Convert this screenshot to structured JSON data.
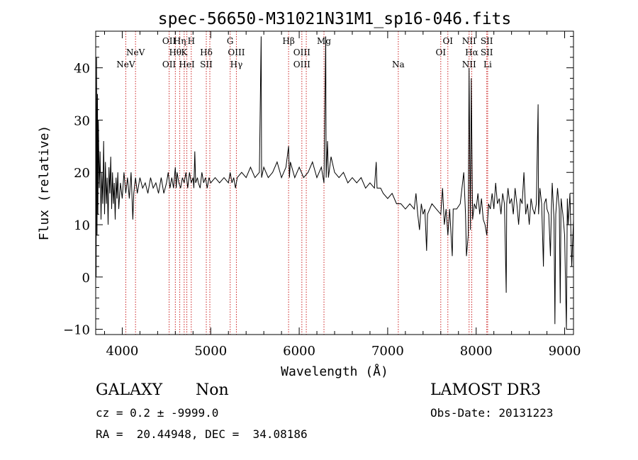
{
  "chart_data": {
    "type": "line",
    "title": "spec-56650-M31021N31M1_sp16-046.fits",
    "xlabel": "Wavelength (Å)",
    "ylabel": "Flux (relative)",
    "xlim": [
      3700,
      9100
    ],
    "ylim": [
      -11,
      47
    ],
    "x_ticks": [
      4000,
      5000,
      6000,
      7000,
      8000,
      9000
    ],
    "y_ticks": [
      -10,
      0,
      10,
      20,
      30,
      40
    ],
    "grid": false,
    "series": [
      {
        "name": "flux",
        "points": [
          [
            3700,
            10
          ],
          [
            3705,
            0
          ],
          [
            3710,
            42
          ],
          [
            3715,
            8
          ],
          [
            3720,
            35
          ],
          [
            3725,
            12
          ],
          [
            3730,
            30
          ],
          [
            3740,
            17
          ],
          [
            3750,
            24
          ],
          [
            3760,
            11
          ],
          [
            3770,
            20
          ],
          [
            3780,
            14
          ],
          [
            3790,
            26
          ],
          [
            3800,
            12
          ],
          [
            3810,
            22
          ],
          [
            3820,
            14
          ],
          [
            3830,
            19
          ],
          [
            3840,
            10
          ],
          [
            3850,
            21
          ],
          [
            3860,
            16
          ],
          [
            3870,
            23
          ],
          [
            3880,
            13
          ],
          [
            3890,
            20
          ],
          [
            3900,
            14
          ],
          [
            3910,
            18
          ],
          [
            3920,
            11
          ],
          [
            3930,
            19
          ],
          [
            3940,
            15
          ],
          [
            3950,
            20
          ],
          [
            3960,
            13
          ],
          [
            3980,
            18
          ],
          [
            4000,
            15
          ],
          [
            4020,
            20
          ],
          [
            4040,
            16
          ],
          [
            4060,
            19
          ],
          [
            4080,
            15
          ],
          [
            4100,
            20
          ],
          [
            4120,
            11
          ],
          [
            4130,
            16
          ],
          [
            4150,
            19
          ],
          [
            4170,
            16
          ],
          [
            4200,
            19
          ],
          [
            4230,
            17
          ],
          [
            4260,
            18
          ],
          [
            4290,
            16
          ],
          [
            4320,
            19
          ],
          [
            4350,
            17
          ],
          [
            4380,
            18
          ],
          [
            4410,
            16
          ],
          [
            4440,
            19
          ],
          [
            4470,
            16
          ],
          [
            4500,
            18
          ],
          [
            4520,
            20
          ],
          [
            4540,
            17
          ],
          [
            4560,
            19
          ],
          [
            4580,
            17
          ],
          [
            4600,
            21
          ],
          [
            4610,
            17
          ],
          [
            4620,
            20
          ],
          [
            4640,
            18
          ],
          [
            4660,
            17
          ],
          [
            4680,
            19
          ],
          [
            4700,
            18
          ],
          [
            4720,
            20
          ],
          [
            4740,
            17
          ],
          [
            4760,
            20
          ],
          [
            4780,
            18
          ],
          [
            4800,
            19
          ],
          [
            4810,
            17
          ],
          [
            4820,
            24
          ],
          [
            4830,
            18
          ],
          [
            4850,
            19
          ],
          [
            4860,
            18
          ],
          [
            4880,
            17
          ],
          [
            4900,
            20
          ],
          [
            4920,
            18
          ],
          [
            4940,
            19
          ],
          [
            4960,
            17
          ],
          [
            4980,
            19
          ],
          [
            5000,
            18
          ],
          [
            5050,
            19
          ],
          [
            5100,
            18
          ],
          [
            5150,
            19
          ],
          [
            5200,
            18
          ],
          [
            5220,
            20
          ],
          [
            5240,
            18
          ],
          [
            5260,
            19
          ],
          [
            5280,
            17
          ],
          [
            5300,
            19
          ],
          [
            5350,
            20
          ],
          [
            5400,
            19
          ],
          [
            5450,
            21
          ],
          [
            5500,
            19
          ],
          [
            5550,
            20
          ],
          [
            5570,
            46
          ],
          [
            5575,
            19
          ],
          [
            5600,
            21
          ],
          [
            5650,
            19
          ],
          [
            5700,
            20
          ],
          [
            5750,
            22
          ],
          [
            5800,
            19
          ],
          [
            5850,
            21
          ],
          [
            5880,
            25
          ],
          [
            5890,
            19
          ],
          [
            5900,
            22
          ],
          [
            5950,
            19
          ],
          [
            6000,
            21
          ],
          [
            6050,
            19
          ],
          [
            6100,
            20
          ],
          [
            6150,
            22
          ],
          [
            6200,
            19
          ],
          [
            6250,
            21
          ],
          [
            6280,
            18
          ],
          [
            6300,
            46
          ],
          [
            6305,
            19
          ],
          [
            6320,
            26
          ],
          [
            6330,
            19
          ],
          [
            6360,
            23
          ],
          [
            6400,
            20
          ],
          [
            6450,
            19
          ],
          [
            6500,
            20
          ],
          [
            6550,
            18
          ],
          [
            6600,
            19
          ],
          [
            6650,
            18
          ],
          [
            6700,
            19
          ],
          [
            6750,
            17
          ],
          [
            6800,
            18
          ],
          [
            6850,
            17
          ],
          [
            6870,
            22
          ],
          [
            6880,
            17
          ],
          [
            6920,
            17
          ],
          [
            6950,
            16
          ],
          [
            7000,
            15
          ],
          [
            7050,
            16
          ],
          [
            7100,
            14
          ],
          [
            7150,
            14
          ],
          [
            7200,
            13
          ],
          [
            7250,
            14
          ],
          [
            7300,
            13
          ],
          [
            7320,
            16
          ],
          [
            7340,
            12
          ],
          [
            7360,
            9
          ],
          [
            7380,
            14
          ],
          [
            7400,
            12
          ],
          [
            7420,
            13
          ],
          [
            7440,
            5
          ],
          [
            7450,
            12
          ],
          [
            7500,
            14
          ],
          [
            7550,
            13
          ],
          [
            7600,
            12
          ],
          [
            7620,
            17
          ],
          [
            7640,
            10
          ],
          [
            7660,
            13
          ],
          [
            7680,
            8
          ],
          [
            7700,
            13
          ],
          [
            7730,
            4
          ],
          [
            7740,
            13
          ],
          [
            7780,
            13
          ],
          [
            7820,
            14
          ],
          [
            7860,
            20
          ],
          [
            7880,
            12
          ],
          [
            7890,
            4
          ],
          [
            7910,
            8
          ],
          [
            7920,
            40
          ],
          [
            7935,
            9
          ],
          [
            7945,
            38
          ],
          [
            7960,
            11
          ],
          [
            7980,
            14
          ],
          [
            8000,
            13
          ],
          [
            8020,
            16
          ],
          [
            8040,
            12
          ],
          [
            8060,
            15
          ],
          [
            8080,
            11
          ],
          [
            8100,
            10
          ],
          [
            8120,
            8
          ],
          [
            8140,
            14
          ],
          [
            8160,
            13
          ],
          [
            8180,
            16
          ],
          [
            8200,
            13
          ],
          [
            8220,
            18
          ],
          [
            8240,
            14
          ],
          [
            8260,
            15
          ],
          [
            8280,
            12
          ],
          [
            8300,
            16
          ],
          [
            8320,
            14
          ],
          [
            8340,
            -3
          ],
          [
            8345,
            14
          ],
          [
            8360,
            17
          ],
          [
            8380,
            14
          ],
          [
            8400,
            15
          ],
          [
            8420,
            12
          ],
          [
            8440,
            17
          ],
          [
            8460,
            14
          ],
          [
            8480,
            10
          ],
          [
            8500,
            15
          ],
          [
            8520,
            14
          ],
          [
            8540,
            20
          ],
          [
            8560,
            12
          ],
          [
            8580,
            14
          ],
          [
            8600,
            10
          ],
          [
            8620,
            15
          ],
          [
            8640,
            13
          ],
          [
            8660,
            12
          ],
          [
            8680,
            14
          ],
          [
            8700,
            33
          ],
          [
            8705,
            12
          ],
          [
            8720,
            17
          ],
          [
            8740,
            14
          ],
          [
            8760,
            2
          ],
          [
            8770,
            14
          ],
          [
            8790,
            15
          ],
          [
            8800,
            13
          ],
          [
            8820,
            12
          ],
          [
            8840,
            4
          ],
          [
            8850,
            13
          ],
          [
            8860,
            18
          ],
          [
            8880,
            11
          ],
          [
            8890,
            -9
          ],
          [
            8900,
            12
          ],
          [
            8920,
            17
          ],
          [
            8940,
            13
          ],
          [
            8950,
            -5
          ],
          [
            8960,
            15
          ],
          [
            8980,
            12
          ],
          [
            9000,
            8
          ],
          [
            9020,
            -10
          ],
          [
            9030,
            15
          ],
          [
            9040,
            10
          ],
          [
            9060,
            16
          ],
          [
            9080,
            2
          ],
          [
            9100,
            11
          ]
        ]
      }
    ],
    "lines": [
      {
        "x": 4040,
        "labels": [
          {
            "text": "NeV",
            "row": 3
          }
        ]
      },
      {
        "x": 4150,
        "labels": [
          {
            "text": "NeV",
            "row": 2
          }
        ]
      },
      {
        "x": 4530,
        "labels": [
          {
            "text": "OII",
            "row": 1
          },
          {
            "text": "OII",
            "row": 3
          }
        ]
      },
      {
        "x": 4600,
        "labels": [
          {
            "text": "Hθ",
            "row": 2
          }
        ]
      },
      {
        "x": 4650,
        "labels": [
          {
            "text": "Hη",
            "row": 1
          }
        ]
      },
      {
        "x": 4700,
        "labels": [
          {
            "text": "K",
            "row": 2
          }
        ]
      },
      {
        "x": 4730,
        "labels": [
          {
            "text": "HeI",
            "row": 3
          }
        ]
      },
      {
        "x": 4780,
        "labels": [
          {
            "text": "H",
            "row": 1
          }
        ]
      },
      {
        "x": 4950,
        "labels": [
          {
            "text": "Hδ",
            "row": 2
          },
          {
            "text": "SII",
            "row": 3
          }
        ]
      },
      {
        "x": 4990,
        "labels": []
      },
      {
        "x": 5220,
        "labels": [
          {
            "text": "G",
            "row": 1
          }
        ]
      },
      {
        "x": 5290,
        "labels": [
          {
            "text": "OIII",
            "row": 2
          },
          {
            "text": "Hγ",
            "row": 3
          }
        ]
      },
      {
        "x": 5880,
        "labels": [
          {
            "text": "Hβ",
            "row": 1
          }
        ]
      },
      {
        "x": 6030,
        "labels": [
          {
            "text": "OIII",
            "row": 2
          },
          {
            "text": "OIII",
            "row": 3
          }
        ]
      },
      {
        "x": 6080,
        "labels": []
      },
      {
        "x": 6280,
        "labels": [
          {
            "text": "Mg",
            "row": 1
          }
        ]
      },
      {
        "x": 7120,
        "labels": [
          {
            "text": "Na",
            "row": 3
          }
        ]
      },
      {
        "x": 7600,
        "labels": [
          {
            "text": "OI",
            "row": 2
          }
        ]
      },
      {
        "x": 7680,
        "labels": [
          {
            "text": "OI",
            "row": 1
          }
        ]
      },
      {
        "x": 7920,
        "labels": [
          {
            "text": "NII",
            "row": 1
          },
          {
            "text": "NII",
            "row": 3
          }
        ]
      },
      {
        "x": 7950,
        "labels": [
          {
            "text": "Hα",
            "row": 2
          }
        ]
      },
      {
        "x": 8120,
        "labels": [
          {
            "text": "SII",
            "row": 1
          },
          {
            "text": "SII",
            "row": 2
          }
        ]
      },
      {
        "x": 8130,
        "labels": [
          {
            "text": "Li",
            "row": 3
          }
        ]
      }
    ]
  },
  "info": {
    "object_class": "GALAXY",
    "subclass": "Non",
    "survey": "LAMOST DR3",
    "cz": "cz = 0.2 ± -9999.0",
    "obs_date": "Obs-Date: 20131223",
    "radec": "RA =  20.44948, DEC =  34.08186"
  }
}
